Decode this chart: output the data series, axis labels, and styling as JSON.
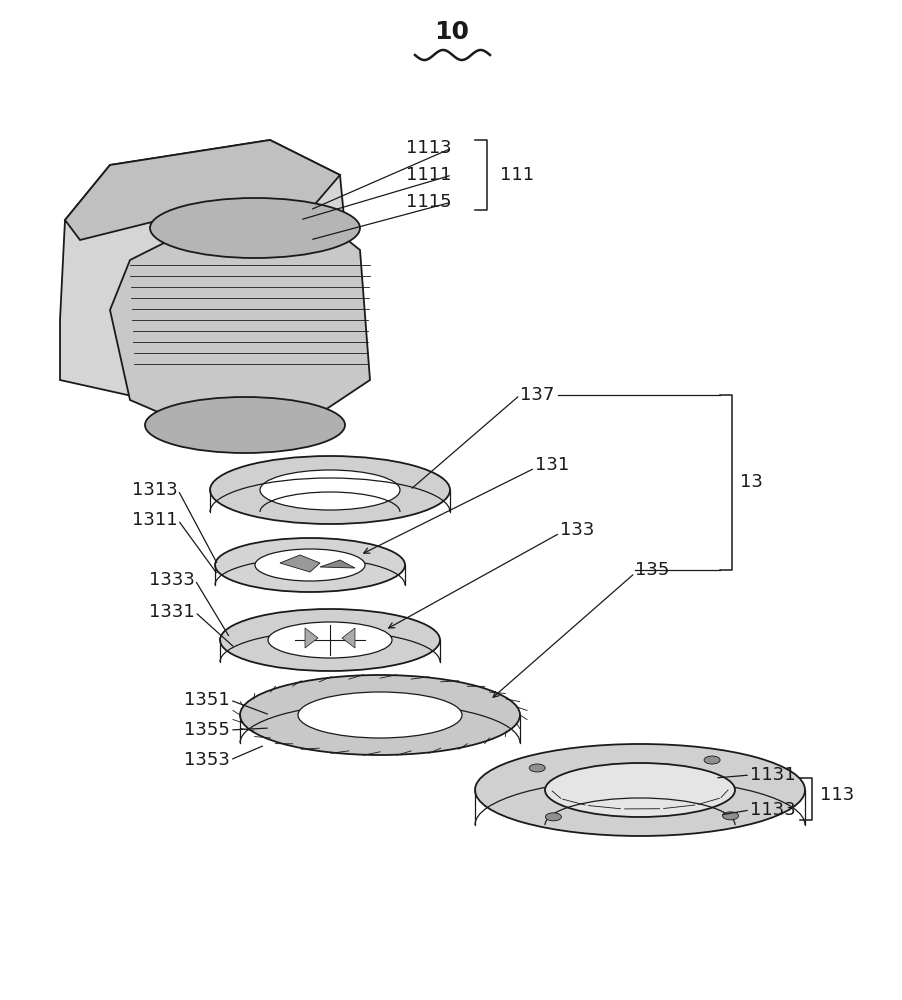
{
  "title_label": "10",
  "bg_color": "#ffffff",
  "line_color": "#1a1a1a",
  "fig_width": 9.03,
  "fig_height": 10.0,
  "dpi": 100,
  "font_size": 14,
  "small_font_size": 13
}
